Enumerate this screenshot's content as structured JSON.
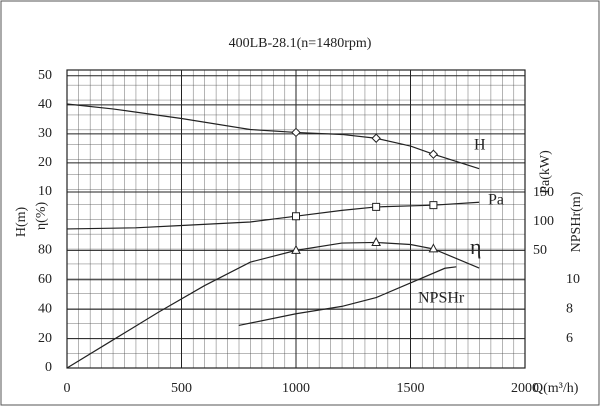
{
  "chart_data": {
    "type": "line",
    "title": "400LB-28.1(n=1480rpm)",
    "x_label": "Q(m³/h)",
    "xlim": [
      0,
      2000
    ],
    "xticks": [
      0,
      500,
      1000,
      1500,
      2000
    ],
    "grid": true,
    "color": "#222222",
    "axes": [
      {
        "label": "H(m)",
        "lim": [
          0,
          52
        ],
        "ticks": [
          10,
          20,
          30,
          40,
          50
        ]
      },
      {
        "label": "η(%)",
        "lim": [
          0,
          100
        ],
        "ticks": [
          0,
          20,
          40,
          60,
          80
        ]
      },
      {
        "label": "Pa(kW)",
        "lim": [
          0,
          150
        ],
        "ticks": [
          50,
          100,
          150
        ]
      },
      {
        "label": "NPSHr(m)",
        "lim": [
          4,
          10
        ],
        "ticks": [
          6,
          8,
          10
        ]
      }
    ],
    "marker_x": [
      1000,
      1350,
      1600
    ],
    "series": [
      {
        "name": "H",
        "axis": 0,
        "marker": "diamond",
        "x": [
          0,
          200,
          500,
          800,
          1000,
          1200,
          1350,
          1500,
          1600,
          1800
        ],
        "values": [
          40.3,
          38.6,
          35.3,
          31.5,
          30.5,
          29.8,
          28.5,
          25.8,
          23,
          18
        ]
      },
      {
        "name": "Pa",
        "axis": 2,
        "marker": "square",
        "x": [
          0,
          300,
          500,
          800,
          1000,
          1200,
          1350,
          1600,
          1800
        ],
        "values": [
          88,
          90,
          94,
          100,
          110,
          120,
          126,
          129,
          134
        ]
      },
      {
        "name": "η",
        "axis": 1,
        "marker": "triangle",
        "x": [
          0,
          200,
          400,
          600,
          800,
          1000,
          1200,
          1350,
          1500,
          1600,
          1800
        ],
        "values": [
          0,
          19,
          38,
          56,
          72,
          80,
          85,
          85.4,
          84,
          81,
          68
        ]
      },
      {
        "name": "NPSHr",
        "axis": 3,
        "x": [
          750,
          1000,
          1200,
          1350,
          1500,
          1650,
          1700
        ],
        "values": [
          6.9,
          7.7,
          8.2,
          8.8,
          9.8,
          10.8,
          10.9
        ]
      }
    ]
  }
}
